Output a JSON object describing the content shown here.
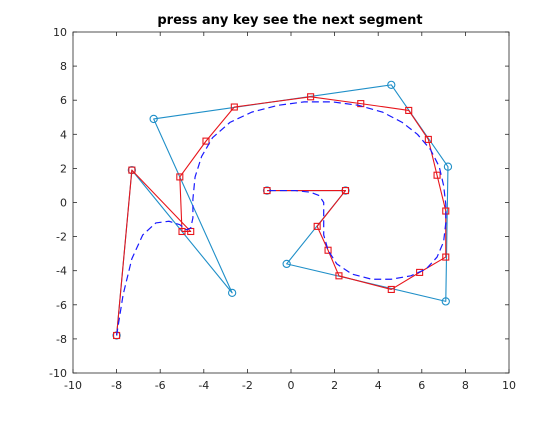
{
  "title": "press any key see the next segment",
  "chart_data": {
    "type": "line",
    "title": "press any key see the next segment",
    "xlabel": "",
    "ylabel": "",
    "xlim": [
      -10,
      10
    ],
    "ylim": [
      -10,
      10
    ],
    "xticks": [
      -10,
      -8,
      -6,
      -4,
      -2,
      0,
      2,
      4,
      6,
      8,
      10
    ],
    "yticks": [
      -10,
      -8,
      -6,
      -4,
      -2,
      0,
      2,
      4,
      6,
      8,
      10
    ],
    "grid": false,
    "legend": "none",
    "series": [
      {
        "role": "control-polygon",
        "color": "#1f8fc8",
        "marker": "circle",
        "line_style": "solid",
        "x": [
          -8.0,
          -7.3,
          -2.7,
          -6.3,
          4.6,
          7.2,
          7.1,
          -0.2,
          2.5,
          -1.1
        ],
        "y": [
          -7.8,
          1.9,
          -5.3,
          4.9,
          6.9,
          2.1,
          -5.8,
          -3.6,
          0.7,
          0.7
        ]
      },
      {
        "role": "subdivided-polygon",
        "color": "#e8151b",
        "marker": "square",
        "line_style": "solid",
        "x": [
          -8.0,
          -7.3,
          -4.6,
          -5.0,
          -5.1,
          -3.9,
          -2.6,
          0.9,
          3.2,
          5.4,
          6.3,
          6.7,
          7.1,
          7.1,
          5.9,
          4.6,
          2.2,
          1.7,
          1.2,
          2.5,
          -1.1
        ],
        "y": [
          -7.8,
          1.9,
          -1.7,
          -1.7,
          1.5,
          3.6,
          5.6,
          6.2,
          5.8,
          5.4,
          3.7,
          1.6,
          -0.5,
          -3.2,
          -4.1,
          -5.1,
          -4.3,
          -2.8,
          -1.4,
          0.7,
          0.7
        ]
      },
      {
        "role": "curve",
        "color": "#1a1aff",
        "marker": "none",
        "line_style": "dashed",
        "x": [
          -8.0,
          -7.7,
          -7.3,
          -6.8,
          -6.2,
          -5.6,
          -5.1,
          -4.8,
          -4.6,
          -4.5,
          -4.5,
          -4.4,
          -4.1,
          -3.6,
          -2.8,
          -1.8,
          -0.6,
          0.6,
          1.9,
          3.1,
          4.2,
          5.1,
          5.8,
          6.4,
          6.8,
          7.0,
          7.1,
          7.1,
          7.0,
          6.7,
          6.2,
          5.5,
          4.6,
          3.7,
          2.8,
          2.1,
          1.7,
          1.5,
          1.5,
          1.5,
          1.3,
          0.9,
          0.2,
          -0.5,
          -1.1
        ],
        "y": [
          -7.8,
          -5.4,
          -3.3,
          -1.9,
          -1.2,
          -1.1,
          -1.3,
          -1.6,
          -1.5,
          -0.9,
          0.2,
          1.5,
          2.7,
          3.8,
          4.7,
          5.3,
          5.7,
          5.9,
          5.9,
          5.7,
          5.3,
          4.7,
          4.0,
          3.1,
          2.1,
          1.0,
          -0.1,
          -1.2,
          -2.3,
          -3.2,
          -3.9,
          -4.3,
          -4.5,
          -4.5,
          -4.2,
          -3.6,
          -2.8,
          -1.9,
          -0.9,
          0.0,
          0.4,
          0.6,
          0.7,
          0.7,
          0.7
        ]
      }
    ]
  }
}
